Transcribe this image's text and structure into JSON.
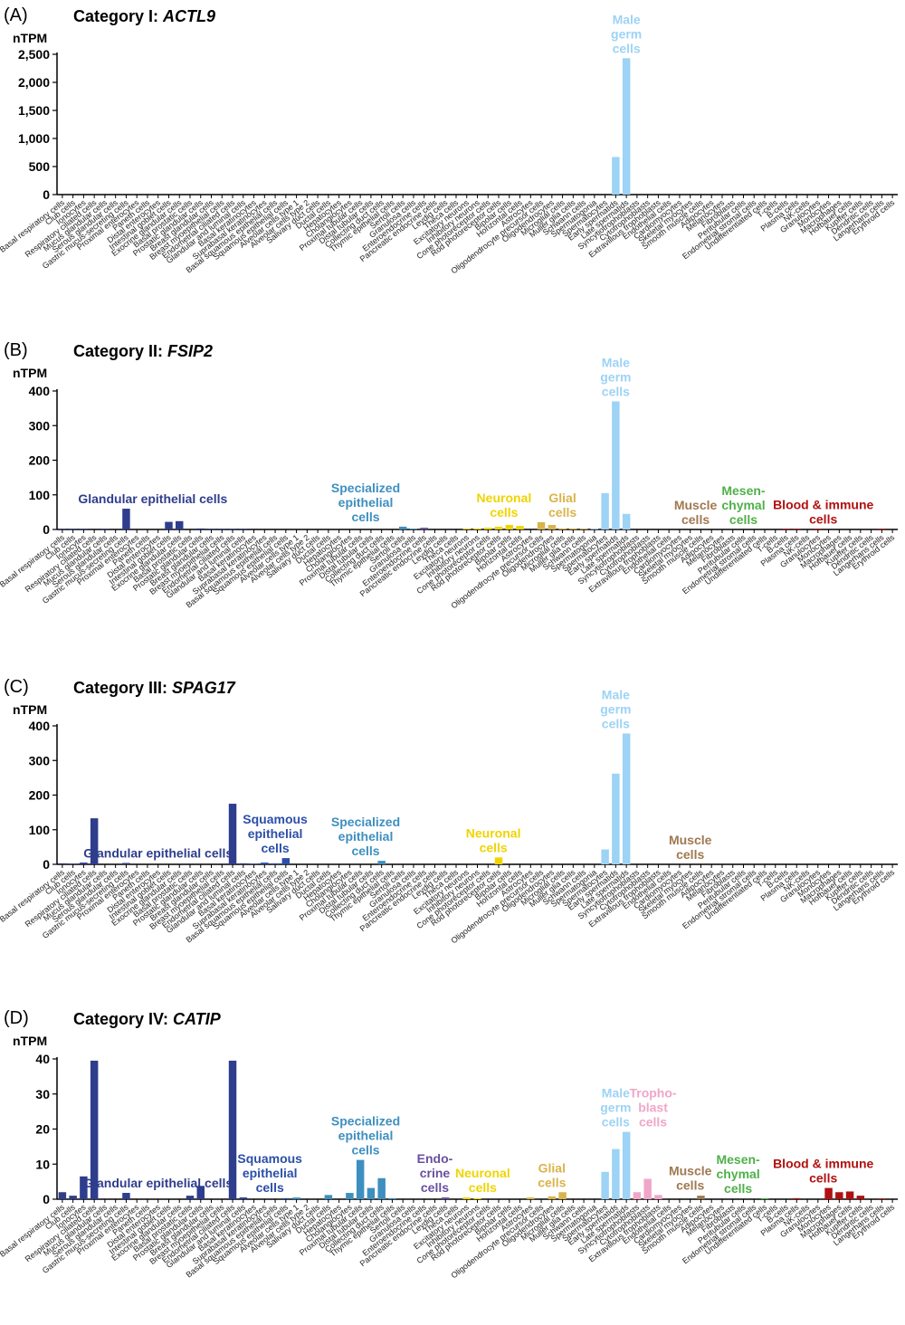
{
  "cell_types": [
    "Basal respiratory cells",
    "Club cells",
    "Ionocytes",
    "Respiratory ciliated cells",
    "Mucus glandular cells",
    "Serous glandular cells",
    "Gastric mucus-secreting cells",
    "Proximal enterocytes",
    "Paneth cells",
    "Distal enterocytes",
    "Intestinal goblet cells",
    "Exocrine glandular cells",
    "Basal prostatic cells",
    "Prostatic glandular cells",
    "Breast glandular cells",
    "Breast myoepithelial cells",
    "Endometrial ciliated cells",
    "Glandular and luminal cells",
    "Basal keratinocytes",
    "Suprabasal keratinocytes",
    "Basal squamous epithelial cells",
    "Squamous epithelial cells",
    "Alveolar cells type 1",
    "Alveolar cells type 2",
    "Salivary duct cells",
    "Ductal cells",
    "Hepatocytes",
    "Cholangiocytes",
    "Proximal tubular cells",
    "Distal tubular cells",
    "Collecting duct cells",
    "Thymic epithelial cells",
    "Sertoli cells",
    "Granulosa cells",
    "Enteroendocrine cells",
    "Pancreatic endocrine cells",
    "Leydig cells",
    "Theca cells",
    "Excitatory neurons",
    "Inhibitory neurons",
    "Cone photoreceptor cells",
    "Rod photoreceptor cells",
    "Bipolar cells",
    "Horizontal cells",
    "Astrocytes",
    "Oligodendrocyte precursor cells",
    "Oligodendrocytes",
    "Microglial cells",
    "Muller glia cells",
    "Schwann cells",
    "Spermatogonia",
    "Spermatocytes",
    "Early spermatids",
    "Late spermatids",
    "Syncytiotrophoblasts",
    "Cytotrophoblasts",
    "Extravillous trophoblasts",
    "Endothelial cells",
    "Cardiomyocytes",
    "Skeletal myocytes",
    "Smooth muscle cells",
    "Adipocytes",
    "Melanocytes",
    "Fibroblasts",
    "Peritubular cells",
    "Endometrial stromal cells",
    "Undifferentiated cells",
    "T-cells",
    "B-cells",
    "Plasma cells",
    "NK-cells",
    "Granulocytes",
    "Monocytes",
    "Macrophages",
    "Hofbauer cells",
    "Kupffer cells",
    "Dendritic cells",
    "Langerhans cells",
    "Erythroid cells"
  ],
  "chart_data": [
    {
      "type": "bar",
      "panel_letter": "(A)",
      "title": "Category I: ",
      "gene": "ACTL9",
      "ylabel": "nTPM",
      "ylim": [
        0,
        2500
      ],
      "yticks": [
        0,
        500,
        1000,
        1500,
        2000,
        2500
      ],
      "ytick_labels": [
        "0",
        "500",
        "1,000",
        "1,500",
        "2,000",
        "2,500"
      ],
      "values": [
        0,
        0,
        0,
        0,
        0,
        0,
        0,
        0,
        0,
        0,
        0,
        0,
        0,
        0,
        0,
        0,
        0,
        0,
        0,
        0,
        0,
        0,
        0,
        0,
        0,
        0,
        0,
        0,
        0,
        0,
        0,
        0,
        0,
        0,
        0,
        0,
        0,
        0,
        0,
        0,
        0,
        0,
        0,
        0,
        0,
        0,
        0,
        0,
        0,
        0,
        0,
        0,
        670,
        2430,
        0,
        0,
        0,
        0,
        0,
        0,
        0,
        0,
        0,
        0,
        0,
        0,
        0,
        0,
        0,
        0,
        0,
        0,
        0,
        0,
        0,
        0,
        0,
        0,
        0
      ],
      "group_labels": [
        {
          "lines": [
            "Male",
            "germ",
            "cells"
          ],
          "color": "#9dd3f5",
          "center": 53
        }
      ]
    },
    {
      "type": "bar",
      "panel_letter": "(B)",
      "title": "Category II: ",
      "gene": "FSIP2",
      "ylabel": "nTPM",
      "ylim": [
        0,
        400
      ],
      "yticks": [
        0,
        100,
        200,
        300,
        400
      ],
      "ytick_labels": [
        "0",
        "100",
        "200",
        "300",
        "400"
      ],
      "values": [
        1,
        2,
        1,
        0,
        1,
        0,
        60,
        0,
        0,
        0,
        22,
        24,
        0,
        3,
        2,
        2,
        1,
        2,
        0,
        0,
        0,
        0,
        0,
        0,
        0,
        0,
        0,
        0,
        0,
        0,
        0,
        0,
        8,
        2,
        5,
        0,
        0,
        0,
        2,
        3,
        5,
        8,
        13,
        10,
        0,
        21,
        13,
        3,
        3,
        2,
        2,
        105,
        370,
        45,
        0,
        0,
        0,
        0,
        0,
        0,
        0,
        0,
        0,
        0,
        0,
        0,
        0,
        0,
        1,
        1,
        0,
        1,
        0,
        0,
        0,
        0,
        0,
        1,
        0
      ],
      "group_labels": [
        {
          "lines": [
            "Glandular epithelial cells"
          ],
          "color": "#2e3d8c",
          "center": 8.5
        },
        {
          "lines": [
            "Specialized",
            "epithelial",
            "cells"
          ],
          "color": "#3d8fbf",
          "center": 28.5
        },
        {
          "lines": [
            "Neuronal",
            "cells"
          ],
          "color": "#f0d400",
          "center": 41.5
        },
        {
          "lines": [
            "Glial",
            "cells"
          ],
          "color": "#d9b44a",
          "center": 47
        },
        {
          "lines": [
            "Male",
            "germ",
            "cells"
          ],
          "color": "#9dd3f5",
          "center": 52
        },
        {
          "lines": [
            "Muscle",
            "cells"
          ],
          "color": "#a07850",
          "center": 59.5
        },
        {
          "lines": [
            "Mesen-",
            "chymal",
            "cells"
          ],
          "color": "#4fb048",
          "center": 64
        },
        {
          "lines": [
            "Blood & immune",
            "cells"
          ],
          "color": "#b01010",
          "center": 71.5
        }
      ]
    },
    {
      "type": "bar",
      "panel_letter": "(C)",
      "title": "Category III: ",
      "gene": "SPAG17",
      "ylabel": "nTPM",
      "ylim": [
        0,
        400
      ],
      "yticks": [
        0,
        100,
        200,
        300,
        400
      ],
      "ytick_labels": [
        "0",
        "100",
        "200",
        "300",
        "400"
      ],
      "values": [
        3,
        2,
        5,
        133,
        0,
        0,
        4,
        0,
        0,
        0,
        0,
        0,
        0,
        0,
        0,
        0,
        175,
        3,
        2,
        5,
        3,
        18,
        0,
        0,
        0,
        0,
        0,
        0,
        0,
        0,
        10,
        0,
        0,
        0,
        0,
        0,
        0,
        0,
        0,
        0,
        0,
        20,
        0,
        0,
        0,
        0,
        0,
        0,
        0,
        0,
        0,
        43,
        262,
        378,
        0,
        0,
        0,
        0,
        0,
        0,
        0,
        0,
        0,
        0,
        0,
        0,
        0,
        0,
        0,
        0,
        0,
        0,
        0,
        0,
        0,
        0,
        0,
        0,
        0
      ],
      "group_labels": [
        {
          "lines": [
            "Glandular epithelial cells"
          ],
          "color": "#2e3d8c",
          "center": 9
        },
        {
          "lines": [
            "Squamous",
            "epithelial",
            "cells"
          ],
          "color": "#2b4fa8",
          "center": 20
        },
        {
          "lines": [
            "Specialized",
            "epithelial",
            "cells"
          ],
          "color": "#3d8fbf",
          "center": 28.5
        },
        {
          "lines": [
            "Neuronal",
            "cells"
          ],
          "color": "#f0d400",
          "center": 40.5
        },
        {
          "lines": [
            "Male",
            "germ",
            "cells"
          ],
          "color": "#9dd3f5",
          "center": 52
        },
        {
          "lines": [
            "Muscle",
            "cells"
          ],
          "color": "#a07850",
          "center": 59
        }
      ]
    },
    {
      "type": "bar",
      "panel_letter": "(D)",
      "title": "Category IV: ",
      "gene": "CATIP",
      "ylabel": "nTPM",
      "ylim": [
        0,
        40
      ],
      "yticks": [
        0,
        10,
        20,
        30,
        40
      ],
      "ytick_labels": [
        "0",
        "10",
        "20",
        "30",
        "40"
      ],
      "values": [
        2,
        1,
        6.5,
        39.5,
        0,
        0,
        1.8,
        0,
        0,
        0,
        0,
        0,
        1,
        3.8,
        0,
        0,
        39.5,
        0.5,
        0,
        0,
        0,
        0.3,
        0.5,
        0,
        0,
        1.2,
        0,
        1.8,
        11.2,
        3.2,
        6,
        0.3,
        0,
        0,
        0,
        0,
        0.5,
        0,
        0.5,
        0.3,
        0,
        0,
        0,
        0,
        0.5,
        0,
        0.8,
        2,
        0,
        0,
        0,
        7.8,
        14.3,
        19.2,
        2,
        5.8,
        1.2,
        0,
        0,
        0,
        1,
        0,
        0,
        0,
        0,
        0,
        0.3,
        0,
        0,
        0.3,
        0,
        0,
        3.2,
        2,
        2.2,
        1,
        0,
        0.2,
        0
      ],
      "group_labels": [
        {
          "lines": [
            "Glandular epithelial cells"
          ],
          "color": "#2e3d8c",
          "center": 9
        },
        {
          "lines": [
            "Squamous",
            "epithelial",
            "cells"
          ],
          "color": "#2b4fa8",
          "center": 19.5
        },
        {
          "lines": [
            "Specialized",
            "epithelial",
            "cells"
          ],
          "color": "#3d8fbf",
          "center": 28.5
        },
        {
          "lines": [
            "Endo-",
            "crine",
            "cells"
          ],
          "color": "#6a4fa0",
          "center": 35
        },
        {
          "lines": [
            "Neuronal",
            "cells"
          ],
          "color": "#f0d400",
          "center": 39.5
        },
        {
          "lines": [
            "Glial",
            "cells"
          ],
          "color": "#d9b44a",
          "center": 46
        },
        {
          "lines": [
            "Male",
            "germ",
            "cells"
          ],
          "color": "#9dd3f5",
          "center": 52
        },
        {
          "lines": [
            "Tropho-",
            "blast",
            "cells"
          ],
          "color": "#f0a6c8",
          "center": 55.5
        },
        {
          "lines": [
            "Muscle",
            "cells"
          ],
          "color": "#a07850",
          "center": 59
        },
        {
          "lines": [
            "Mesen-",
            "chymal",
            "cells"
          ],
          "color": "#4fb048",
          "center": 63.5
        },
        {
          "lines": [
            "Blood & immune",
            "cells"
          ],
          "color": "#b01010",
          "center": 71.5
        }
      ]
    }
  ],
  "group_colors": {
    "glandular": "#2e3d8c",
    "squamous": "#2b4fa8",
    "specialized": "#3d8fbf",
    "endocrine": "#6a4fa0",
    "neuronal": "#f0d400",
    "glial": "#d9b44a",
    "germ": "#9dd3f5",
    "trophoblast": "#f0a6c8",
    "muscle": "#a07850",
    "mesenchymal": "#4fb048",
    "blood": "#b01010"
  }
}
